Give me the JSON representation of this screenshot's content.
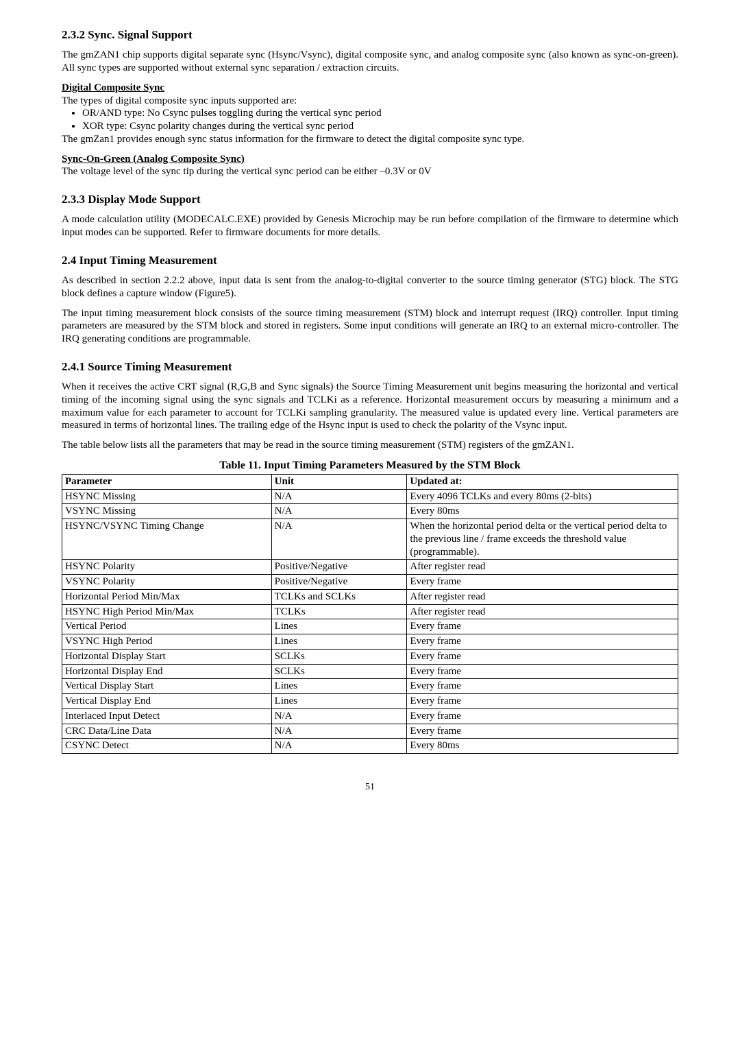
{
  "s232": {
    "title": "2.3.2 Sync. Signal Support",
    "p1": "The gmZAN1 chip supports digital separate sync (Hsync/Vsync), digital composite sync, and analog composite sync (also known as sync-on-green). All sync types are supported without external sync separation / extraction circuits.",
    "dcs_heading": "Digital Composite Sync",
    "dcs_line": "The types of digital composite sync inputs supported are:",
    "dcs_bullet1": "OR/AND type: No Csync pulses toggling during the vertical sync period",
    "dcs_bullet2": "XOR type: Csync polarity changes during the vertical sync period",
    "dcs_after": "The gmZan1 provides enough sync status information for the firmware to detect the digital composite sync type.",
    "sog_heading": "Sync-On-Green (Analog Composite Sync)",
    "sog_line": "The voltage level of the sync tip during the vertical sync period can be either –0.3V or 0V"
  },
  "s233": {
    "title": "2.3.3 Display Mode Support",
    "p1": "A mode calculation utility (MODECALC.EXE) provided by Genesis Microchip may be run before compilation of the firmware to determine which input modes can be supported. Refer to firmware documents for more details."
  },
  "s24": {
    "title": "2.4 Input Timing Measurement",
    "p1": "As described in section 2.2.2 above, input data is sent from the analog-to-digital converter to the source timing generator (STG) block. The STG block defines a capture window (Figure5).",
    "p2": "The input timing measurement block consists of the source timing measurement (STM) block and interrupt request (IRQ) controller. Input timing parameters are measured by the STM block and stored in registers. Some input conditions will generate an IRQ to an external micro-controller. The IRQ generating conditions are programmable."
  },
  "s241": {
    "title": "2.4.1 Source Timing Measurement",
    "p1": "When it receives the active CRT signal (R,G,B and Sync signals) the Source Timing Measurement unit begins measuring the horizontal and vertical timing of the incoming signal using the sync signals and TCLKi as a reference. Horizontal measurement occurs by measuring a minimum and a maximum value for each parameter to account for TCLKi sampling granularity. The measured value is updated every line. Vertical parameters are measured in terms of horizontal lines. The trailing edge of the Hsync input is used to check the polarity of the Vsync input.",
    "p2": "The table below lists all the parameters that may be read in the source timing measurement (STM) registers of the gmZAN1."
  },
  "table": {
    "title": "Table 11. Input Timing Parameters Measured by the STM Block",
    "headers": {
      "c0": "Parameter",
      "c1": "Unit",
      "c2": "Updated at:"
    },
    "rows": {
      "r0": {
        "c0": "HSYNC Missing",
        "c1": "N/A",
        "c2": "Every 4096 TCLKs and every 80ms (2-bits)"
      },
      "r1": {
        "c0": "VSYNC Missing",
        "c1": "N/A",
        "c2": "Every 80ms"
      },
      "r2": {
        "c0": "HSYNC/VSYNC Timing Change",
        "c1": "N/A",
        "c2": "When the horizontal period delta or the vertical period delta to the previous line / frame exceeds the threshold value (programmable)."
      },
      "r3": {
        "c0": "HSYNC Polarity",
        "c1": "Positive/Negative",
        "c2": "After register read"
      },
      "r4": {
        "c0": "VSYNC Polarity",
        "c1": "Positive/Negative",
        "c2": "Every frame"
      },
      "r5": {
        "c0": "Horizontal Period Min/Max",
        "c1": "TCLKs and SCLKs",
        "c2": "After register read"
      },
      "r6": {
        "c0": "HSYNC High Period Min/Max",
        "c1": "TCLKs",
        "c2": "After register read"
      },
      "r7": {
        "c0": "Vertical Period",
        "c1": "Lines",
        "c2": "Every frame"
      },
      "r8": {
        "c0": "VSYNC High Period",
        "c1": "Lines",
        "c2": "Every frame"
      },
      "r9": {
        "c0": "Horizontal Display Start",
        "c1": "SCLKs",
        "c2": "Every frame"
      },
      "r10": {
        "c0": "Horizontal Display End",
        "c1": "SCLKs",
        "c2": "Every frame"
      },
      "r11": {
        "c0": "Vertical Display Start",
        "c1": "Lines",
        "c2": "Every frame"
      },
      "r12": {
        "c0": "Vertical Display End",
        "c1": "Lines",
        "c2": "Every frame"
      },
      "r13": {
        "c0": "Interlaced Input Detect",
        "c1": "N/A",
        "c2": "Every frame"
      },
      "r14": {
        "c0": "CRC Data/Line Data",
        "c1": "N/A",
        "c2": "Every frame"
      },
      "r15": {
        "c0": "CSYNC Detect",
        "c1": "N/A",
        "c2": "Every 80ms"
      }
    }
  },
  "page_number": "51"
}
